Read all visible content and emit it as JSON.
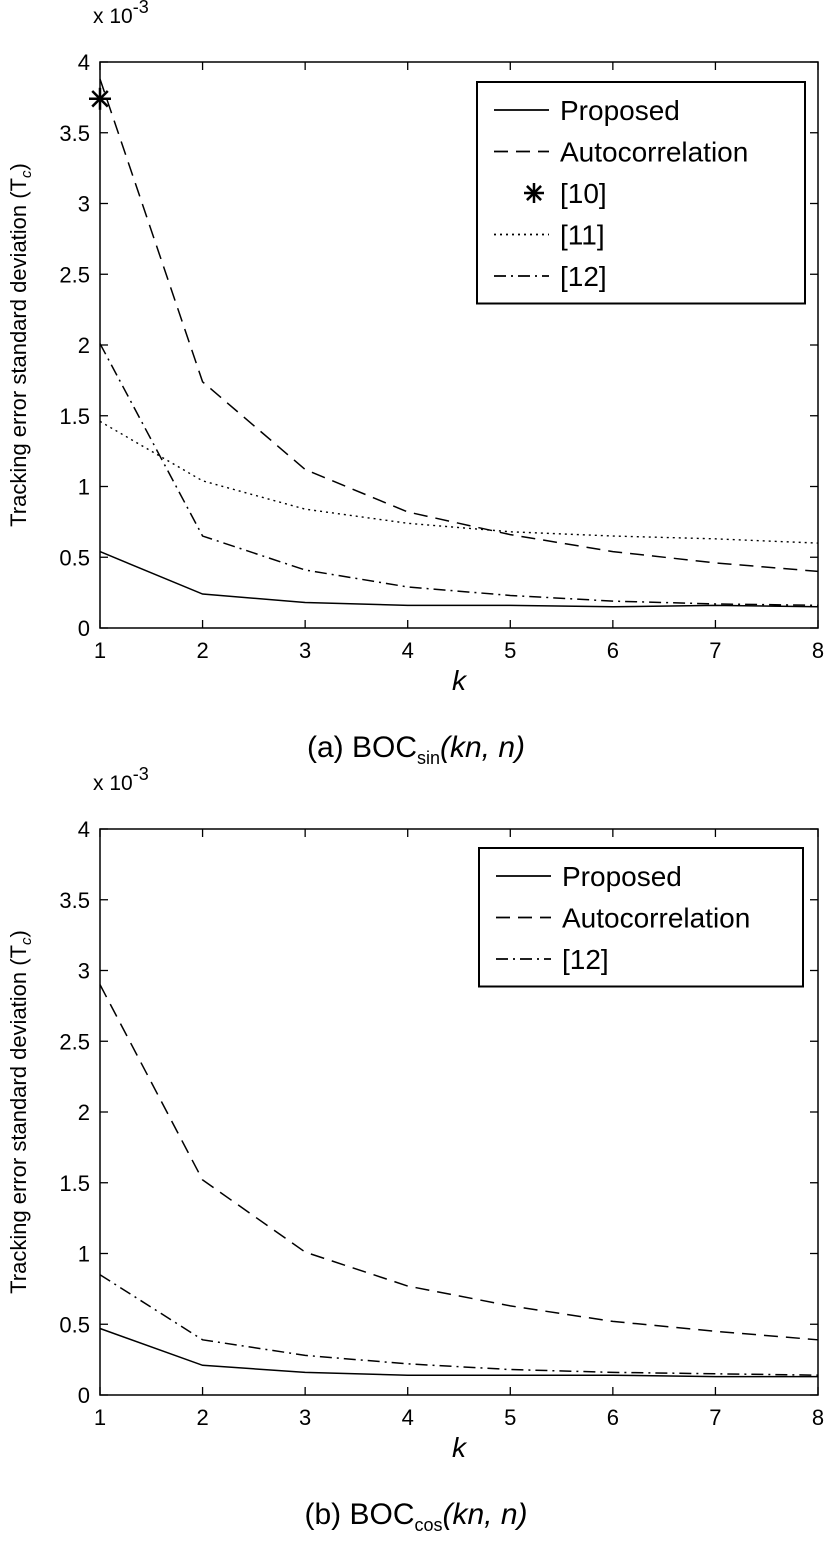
{
  "chart_data": [
    {
      "type": "line",
      "caption": {
        "prefix": "(a) BOC",
        "subscript": "sin",
        "args": "(kn, n)"
      },
      "xlabel": "k",
      "ylabel": "Tracking error standard deviation (T",
      "ylabel_sub": "c",
      "ylabel_close": ")",
      "yscale_label": "x 10",
      "yscale_exp": "-3",
      "xlim": [
        1,
        8
      ],
      "ylim": [
        0,
        4
      ],
      "xticks": [
        "1",
        "2",
        "3",
        "4",
        "5",
        "6",
        "7",
        "8"
      ],
      "yticks": [
        "0",
        "0.5",
        "1",
        "1.5",
        "2",
        "2.5",
        "3",
        "3.5",
        "4"
      ],
      "grid": false,
      "legend_position": "top-right",
      "x": [
        1,
        2,
        3,
        4,
        5,
        6,
        7,
        8
      ],
      "series": [
        {
          "name": "Proposed",
          "style": "solid",
          "values": [
            0.54,
            0.24,
            0.18,
            0.16,
            0.16,
            0.15,
            0.16,
            0.15
          ]
        },
        {
          "name": "Autocorrelation",
          "style": "dashed",
          "values": [
            3.88,
            1.74,
            1.12,
            0.82,
            0.66,
            0.54,
            0.46,
            0.4
          ]
        },
        {
          "name": "[10]",
          "style": "star-marker",
          "points": [
            [
              1,
              3.74
            ]
          ]
        },
        {
          "name": "[11]",
          "style": "dotted",
          "values": [
            1.46,
            1.04,
            0.84,
            0.74,
            0.68,
            0.65,
            0.63,
            0.6
          ]
        },
        {
          "name": "[12]",
          "style": "dashdot",
          "values": [
            2.01,
            0.65,
            0.41,
            0.29,
            0.23,
            0.19,
            0.17,
            0.16
          ]
        }
      ]
    },
    {
      "type": "line",
      "caption": {
        "prefix": "(b) BOC",
        "subscript": "cos",
        "args": "(kn, n)"
      },
      "xlabel": "k",
      "ylabel": "Tracking error standard deviation (T",
      "ylabel_sub": "c",
      "ylabel_close": ")",
      "yscale_label": "x 10",
      "yscale_exp": "-3",
      "xlim": [
        1,
        8
      ],
      "ylim": [
        0,
        4
      ],
      "xticks": [
        "1",
        "2",
        "3",
        "4",
        "5",
        "6",
        "7",
        "8"
      ],
      "yticks": [
        "0",
        "0.5",
        "1",
        "1.5",
        "2",
        "2.5",
        "3",
        "3.5",
        "4"
      ],
      "grid": false,
      "legend_position": "top-right",
      "x": [
        1,
        2,
        3,
        4,
        5,
        6,
        7,
        8
      ],
      "series": [
        {
          "name": "Proposed",
          "style": "solid",
          "values": [
            0.47,
            0.21,
            0.16,
            0.14,
            0.14,
            0.14,
            0.13,
            0.13
          ]
        },
        {
          "name": "Autocorrelation",
          "style": "dashed",
          "values": [
            2.9,
            1.52,
            1.01,
            0.77,
            0.63,
            0.52,
            0.45,
            0.39
          ]
        },
        {
          "name": "[12]",
          "style": "dashdot",
          "values": [
            0.85,
            0.39,
            0.28,
            0.22,
            0.18,
            0.16,
            0.15,
            0.14
          ]
        }
      ]
    }
  ]
}
